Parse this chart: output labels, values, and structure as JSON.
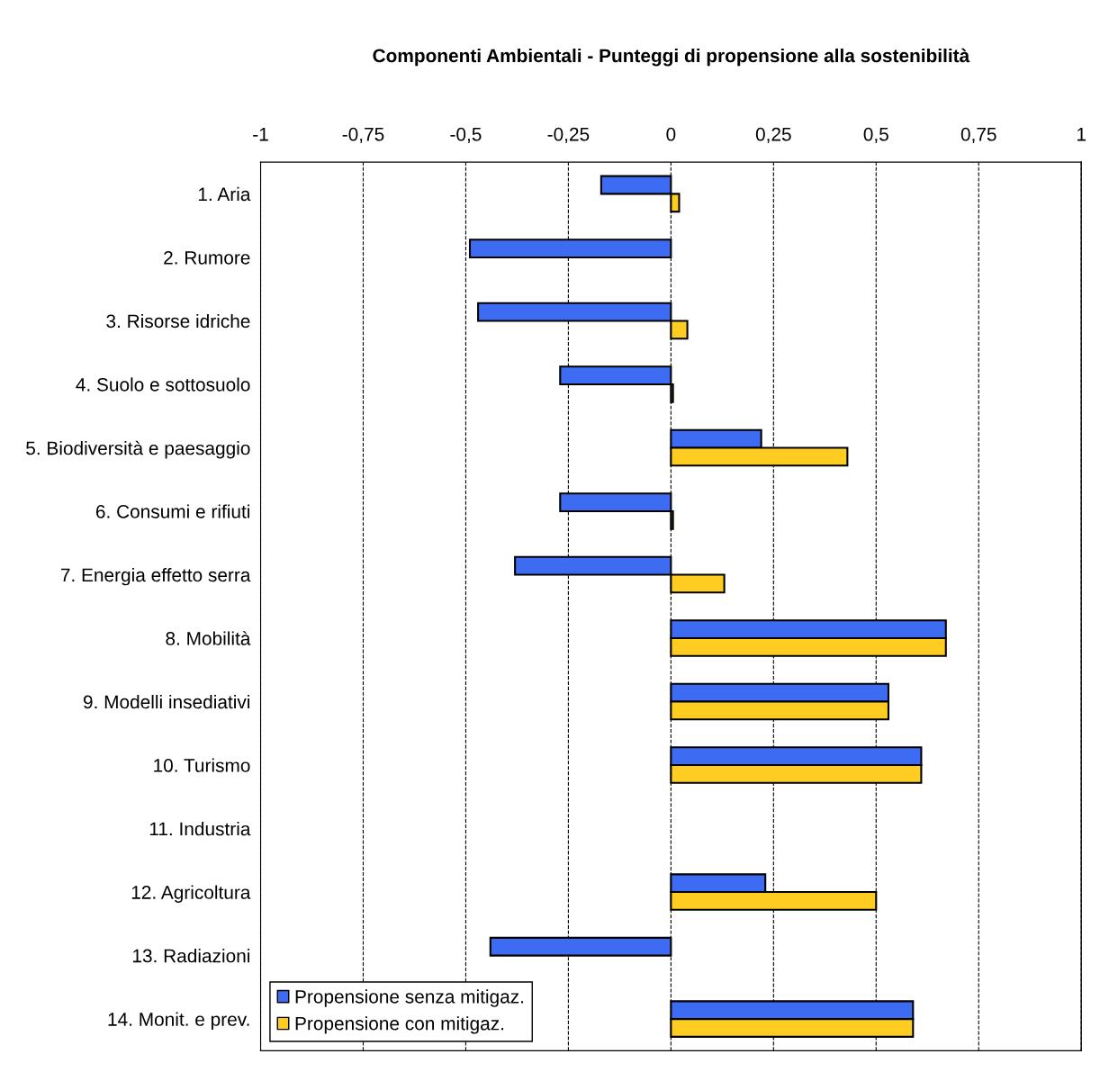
{
  "chart_data": {
    "type": "bar",
    "orientation": "horizontal",
    "title": "Componenti Ambientali - Punteggi di propensione alla sostenibilità",
    "categories": [
      "1. Aria",
      "2. Rumore",
      "3. Risorse idriche",
      "4. Suolo e sottosuolo",
      "5. Biodiversità e paesaggio",
      "6. Consumi e rifiuti",
      "7. Energia effetto serra",
      "8. Mobilità",
      "9. Modelli insediativi",
      "10. Turismo",
      "11. Industria",
      "12. Agricoltura",
      "13. Radiazioni",
      "14. Monit. e prev."
    ],
    "series": [
      {
        "name": "Propensione senza mitigaz.",
        "color": "#3d6cf2",
        "values": [
          -0.17,
          -0.49,
          -0.47,
          -0.27,
          0.22,
          -0.27,
          -0.38,
          0.67,
          0.53,
          0.61,
          0,
          0.23,
          -0.44,
          0.59
        ]
      },
      {
        "name": "Propensione con mitigaz.",
        "color": "#ffcc22",
        "values": [
          0.02,
          0,
          0.04,
          0.005,
          0.43,
          0.005,
          0.13,
          0.67,
          0.53,
          0.61,
          0,
          0.5,
          0,
          0.59
        ]
      }
    ],
    "xlim": [
      -1,
      1
    ],
    "xticks": [
      {
        "value": -1,
        "label": "-1"
      },
      {
        "value": -0.75,
        "label": "-0,75"
      },
      {
        "value": -0.5,
        "label": "-0,5"
      },
      {
        "value": -0.25,
        "label": "-0,25"
      },
      0,
      {
        "value": 0.25,
        "label": "0,25"
      },
      {
        "value": 0.5,
        "label": "0,5"
      },
      {
        "value": 0.75,
        "label": "0,75"
      },
      1
    ],
    "grid": "x",
    "legend": "bottom left"
  }
}
